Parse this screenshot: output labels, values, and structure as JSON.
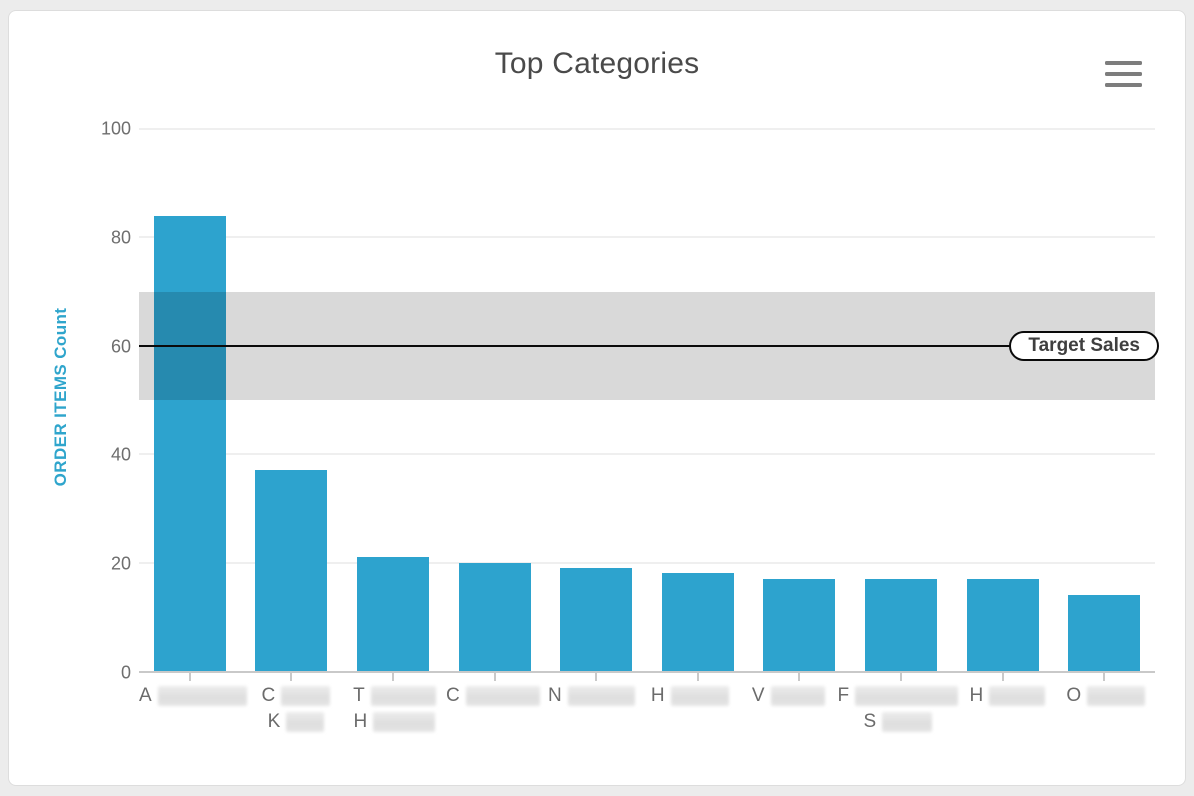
{
  "header": {
    "title": "Top Categories",
    "menu_icon": "hamburger-icon"
  },
  "colors": {
    "bar": "#2DA3CE",
    "band": "rgba(0,0,0,0.15)",
    "target_line": "#0A0A0A",
    "axis_title": "#2FA5CC",
    "page_background": "#ECECEC",
    "card_background": "#FFFFFF"
  },
  "chart_data": {
    "type": "bar",
    "title": "Top Categories",
    "xlabel": "",
    "ylabel": "ORDER ITEMS Count",
    "ylim": [
      0,
      100
    ],
    "yticks": [
      0,
      20,
      40,
      60,
      80,
      100
    ],
    "grid": true,
    "legend": false,
    "categories": [
      {
        "lines": [
          {
            "text": "A",
            "redacted_width": 89
          }
        ]
      },
      {
        "lines": [
          {
            "text": "C",
            "redacted_width": 49
          },
          {
            "text": "K",
            "redacted_width": 38
          }
        ]
      },
      {
        "lines": [
          {
            "text": "T",
            "redacted_width": 65
          },
          {
            "text": "H",
            "redacted_width": 62
          }
        ]
      },
      {
        "lines": [
          {
            "text": "C",
            "redacted_width": 74
          }
        ]
      },
      {
        "lines": [
          {
            "text": "N",
            "redacted_width": 67
          }
        ]
      },
      {
        "lines": [
          {
            "text": "H",
            "redacted_width": 58
          }
        ]
      },
      {
        "lines": [
          {
            "text": "V",
            "redacted_width": 54
          }
        ]
      },
      {
        "lines": [
          {
            "text": "F",
            "redacted_width": 103
          },
          {
            "text": "S",
            "redacted_width": 50
          }
        ]
      },
      {
        "lines": [
          {
            "text": "H",
            "redacted_width": 56
          }
        ]
      },
      {
        "lines": [
          {
            "text": "O",
            "redacted_width": 58
          }
        ]
      }
    ],
    "values": [
      84,
      37,
      21,
      20,
      19,
      18,
      17,
      17,
      17,
      14
    ],
    "plot_band": {
      "from": 50,
      "to": 70
    },
    "plot_line": {
      "value": 60,
      "label": "Target Sales"
    }
  }
}
